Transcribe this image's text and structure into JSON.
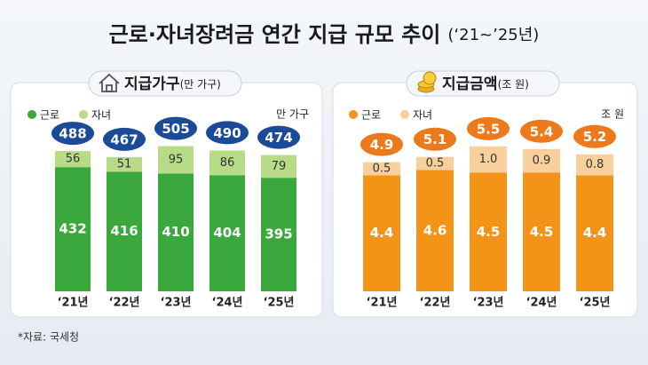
{
  "title": "근로·자녀장려금 연간 지급 규모 추이",
  "subtitle": "(‘21~’25년)",
  "source": "*자료: 국세청",
  "chart_data": [
    {
      "type": "bar",
      "stacked": true,
      "title": "지급가구",
      "title_unit": "(만 가구)",
      "unit": "만 가구",
      "categories": [
        "‘21년",
        "‘22년",
        "‘23년",
        "‘24년",
        "‘25년"
      ],
      "series": [
        {
          "name": "근로",
          "color": "#3aa83c",
          "values": [
            432,
            416,
            410,
            404,
            395
          ]
        },
        {
          "name": "자녀",
          "color": "#b8db88",
          "values": [
            56,
            51,
            95,
            86,
            79
          ]
        }
      ],
      "totals": [
        488,
        467,
        505,
        490,
        474
      ],
      "totals_color": "#1b4b98",
      "ylim": [
        0,
        550
      ]
    },
    {
      "type": "bar",
      "stacked": true,
      "title": "지급금액",
      "title_unit": "(조 원)",
      "unit": "조 원",
      "categories": [
        "‘21년",
        "‘22년",
        "‘23년",
        "‘24년",
        "‘25년"
      ],
      "series": [
        {
          "name": "근로",
          "color": "#f39418",
          "values": [
            4.4,
            4.6,
            4.5,
            4.5,
            4.4
          ]
        },
        {
          "name": "자녀",
          "color": "#f9cf9c",
          "values": [
            0.5,
            0.5,
            1.0,
            0.9,
            0.8
          ],
          "value_labels": [
            "0.5",
            "0.5",
            "1.0",
            "0.9",
            "0.8"
          ]
        }
      ],
      "totals": [
        4.9,
        5.1,
        5.5,
        5.4,
        5.2
      ],
      "totals_color": "#ec7a1c",
      "ylim": [
        0,
        6
      ]
    }
  ]
}
